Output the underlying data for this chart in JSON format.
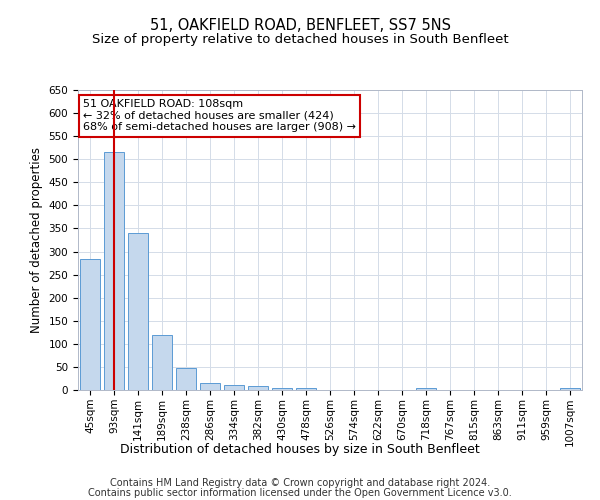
{
  "title": "51, OAKFIELD ROAD, BENFLEET, SS7 5NS",
  "subtitle": "Size of property relative to detached houses in South Benfleet",
  "xlabel": "Distribution of detached houses by size in South Benfleet",
  "ylabel": "Number of detached properties",
  "footer_line1": "Contains HM Land Registry data © Crown copyright and database right 2024.",
  "footer_line2": "Contains public sector information licensed under the Open Government Licence v3.0.",
  "categories": [
    "45sqm",
    "93sqm",
    "141sqm",
    "189sqm",
    "238sqm",
    "286sqm",
    "334sqm",
    "382sqm",
    "430sqm",
    "478sqm",
    "526sqm",
    "574sqm",
    "622sqm",
    "670sqm",
    "718sqm",
    "767sqm",
    "815sqm",
    "863sqm",
    "911sqm",
    "959sqm",
    "1007sqm"
  ],
  "values": [
    283,
    515,
    340,
    120,
    47,
    15,
    10,
    8,
    5,
    4,
    0,
    0,
    0,
    0,
    5,
    0,
    0,
    0,
    0,
    0,
    5
  ],
  "bar_color": "#c5d8ed",
  "bar_edge_color": "#5b9bd5",
  "bar_edge_width": 0.7,
  "red_line_x": 1.0,
  "annotation_text": "51 OAKFIELD ROAD: 108sqm\n← 32% of detached houses are smaller (424)\n68% of semi-detached houses are larger (908) →",
  "annotation_box_color": "#ffffff",
  "annotation_box_edge_color": "#cc0000",
  "red_line_color": "#cc0000",
  "ylim": [
    0,
    650
  ],
  "yticks": [
    0,
    50,
    100,
    150,
    200,
    250,
    300,
    350,
    400,
    450,
    500,
    550,
    600,
    650
  ],
  "grid_color": "#d4dce8",
  "background_color": "#ffffff",
  "title_fontsize": 10.5,
  "subtitle_fontsize": 9.5,
  "xlabel_fontsize": 9,
  "ylabel_fontsize": 8.5,
  "tick_fontsize": 7.5,
  "footer_fontsize": 7,
  "annotation_fontsize": 8
}
